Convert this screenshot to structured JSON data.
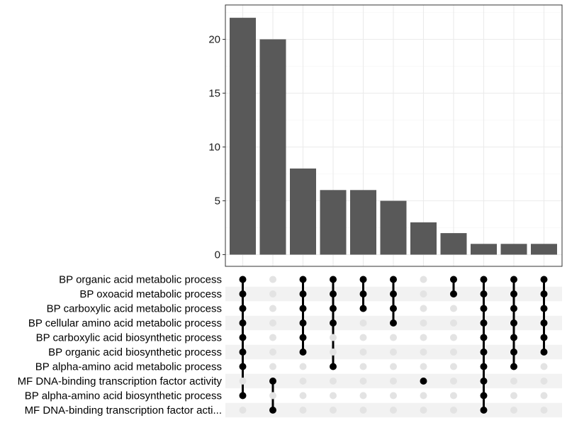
{
  "chart_data": {
    "type": "upset",
    "title": "",
    "xlabel": "",
    "ylabel": "",
    "ylim": [
      0,
      23.2
    ],
    "yticks": [
      0,
      5,
      10,
      15,
      20
    ],
    "grid": true,
    "bar_color": "#595959",
    "dot_color": "#000000",
    "dot_inactive_color": "#e3e3e3",
    "stripe_color": "#f2f2f2",
    "sets": [
      "BP organic acid metabolic process",
      "BP oxoacid metabolic process",
      "BP carboxylic acid metabolic process",
      "BP cellular amino acid metabolic process",
      "BP carboxylic acid biosynthetic process",
      "BP organic acid biosynthetic process",
      "BP alpha-amino acid metabolic process",
      "MF DNA-binding transcription factor activity",
      "BP alpha-amino acid biosynthetic process",
      "MF DNA-binding transcription factor acti..."
    ],
    "values": [
      22,
      20,
      8,
      6,
      6,
      5,
      3,
      2,
      1,
      1,
      1
    ],
    "intersections": [
      [
        0,
        1,
        2,
        3,
        4,
        5,
        6,
        8
      ],
      [
        7,
        9
      ],
      [
        0,
        1,
        2,
        3,
        4,
        5
      ],
      [
        0,
        1,
        2,
        3,
        6
      ],
      [
        0,
        1,
        2
      ],
      [
        0,
        1,
        2,
        3
      ],
      [
        7
      ],
      [
        0,
        1
      ],
      [
        0,
        1,
        2,
        3,
        4,
        5,
        6,
        7,
        8,
        9
      ],
      [
        0,
        1,
        2,
        3,
        4,
        5,
        6
      ],
      [
        0,
        1,
        2,
        3,
        4,
        5
      ]
    ]
  }
}
